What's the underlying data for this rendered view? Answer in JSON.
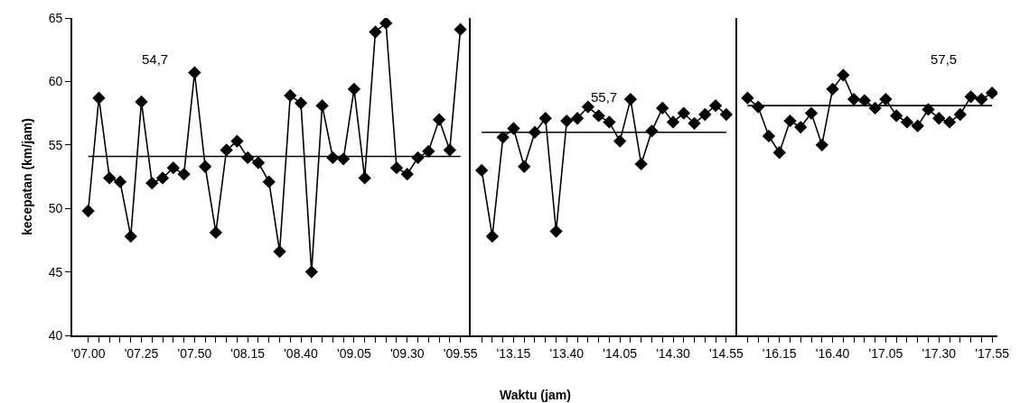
{
  "chart_data": {
    "type": "line",
    "xlabel": "Waktu (jam)",
    "ylabel": "kecepatan (km/jam)",
    "categories": [
      "'07.00",
      null,
      null,
      null,
      null,
      "'07.25",
      null,
      null,
      null,
      null,
      "'07.50",
      null,
      null,
      null,
      null,
      "'08.15",
      null,
      null,
      null,
      null,
      "'08.40",
      null,
      null,
      null,
      null,
      "'09.05",
      null,
      null,
      null,
      null,
      "'09.30",
      null,
      null,
      null,
      null,
      "'09.55",
      null,
      null,
      null,
      null,
      "'13.15",
      null,
      null,
      null,
      null,
      "'13.40",
      null,
      null,
      null,
      null,
      "'14.05",
      null,
      null,
      null,
      null,
      "'14.30",
      null,
      null,
      null,
      null,
      "'14.55",
      null,
      null,
      null,
      null,
      "'16.15",
      null,
      null,
      null,
      null,
      "'16.40",
      null,
      null,
      null,
      null,
      "'17.05",
      null,
      null,
      null,
      null,
      "'17.30",
      null,
      null,
      null,
      null,
      "'17.55"
    ],
    "series": [
      {
        "color": "#000000",
        "marker": "diamond",
        "values": [
          49.8,
          58.7,
          52.4,
          52.1,
          47.8,
          58.4,
          52.0,
          52.4,
          53.2,
          52.7,
          60.7,
          53.3,
          48.1,
          54.6,
          55.3,
          54.0,
          53.6,
          52.1,
          46.6,
          58.9,
          58.3,
          45.0,
          58.1,
          54.0,
          53.9,
          59.4,
          52.4,
          63.9,
          64.6,
          53.2,
          52.7,
          54.0,
          54.5,
          57.0,
          54.6,
          64.1,
          null,
          53.0,
          47.8,
          55.6,
          56.3,
          53.3,
          56.0,
          57.1,
          48.2,
          56.9,
          57.1,
          58.0,
          57.3,
          56.8,
          55.3,
          58.6,
          53.5,
          56.1,
          57.9,
          56.8,
          57.5,
          56.7,
          57.4,
          58.1,
          57.4,
          null,
          58.7,
          58.0,
          55.7,
          54.4,
          56.9,
          56.4,
          57.5,
          55.0,
          59.4,
          60.5,
          58.6,
          58.5,
          57.9,
          58.6,
          57.3,
          56.8,
          56.5,
          57.8,
          57.1,
          56.8,
          57.4,
          58.8,
          58.6,
          59.1
        ]
      },
      {
        "color": "#000000",
        "marker": "none",
        "values": [
          54.1,
          54.1,
          54.1,
          54.1,
          54.1,
          54.1,
          54.1,
          54.1,
          54.1,
          54.1,
          54.1,
          54.1,
          54.1,
          54.1,
          54.1,
          54.1,
          54.1,
          54.1,
          54.1,
          54.1,
          54.1,
          54.1,
          54.1,
          54.1,
          54.1,
          54.1,
          54.1,
          54.1,
          54.1,
          54.1,
          54.1,
          54.1,
          54.1,
          54.1,
          54.1,
          54.1,
          null,
          56.0,
          56.0,
          56.0,
          56.0,
          56.0,
          56.0,
          56.0,
          56.0,
          56.0,
          56.0,
          56.0,
          56.0,
          56.0,
          56.0,
          56.0,
          56.0,
          56.0,
          56.0,
          56.0,
          56.0,
          56.0,
          56.0,
          56.0,
          56.0,
          null,
          58.1,
          58.1,
          58.1,
          58.1,
          58.1,
          58.1,
          58.1,
          58.1,
          58.1,
          58.1,
          58.1,
          58.1,
          58.1,
          58.1,
          58.1,
          58.1,
          58.1,
          58.1,
          58.1,
          58.1,
          58.1,
          58.1,
          58.1,
          58.1
        ]
      }
    ],
    "ylim": [
      40,
      65
    ],
    "yticks": [
      40,
      45,
      50,
      55,
      60,
      65
    ],
    "annotations": [
      "54,7",
      "55,7",
      "57,5"
    ]
  }
}
